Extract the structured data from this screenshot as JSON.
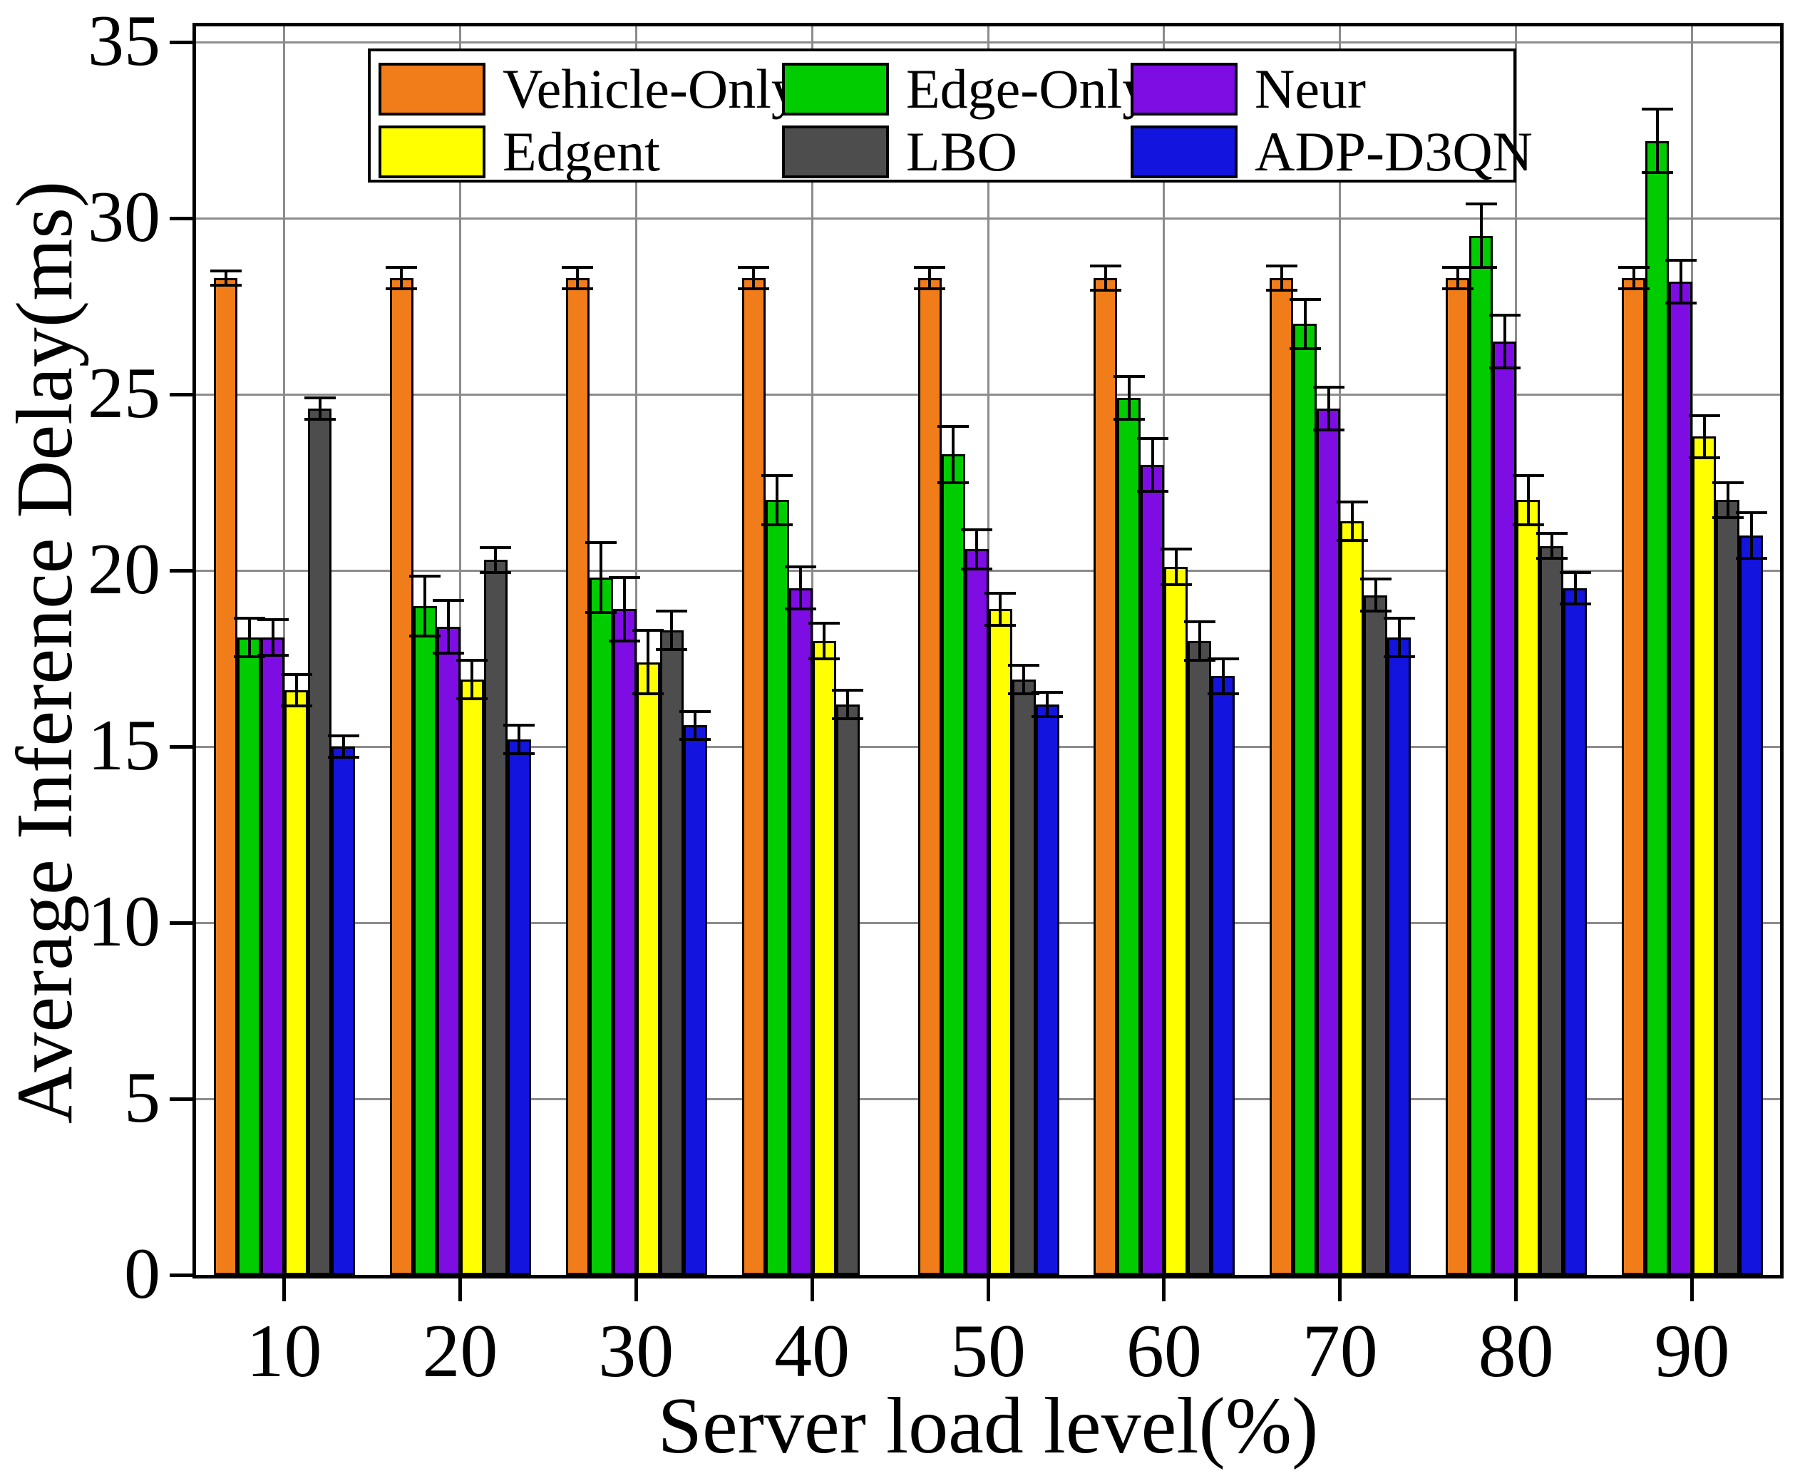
{
  "figure": {
    "background_color": "#ffffff",
    "grid_color": "#8c8c8c",
    "frame_color": "#000000"
  },
  "axes": {
    "y_label": "Average Inference Delay(ms)",
    "x_label": "Server load level(%)",
    "y_ticks": [
      0,
      5,
      10,
      15,
      20,
      25,
      30,
      35
    ],
    "x_tick_labels": [
      "10",
      "20",
      "30",
      "40",
      "50",
      "60",
      "70",
      "80",
      "90"
    ]
  },
  "legend": {
    "rows": 2,
    "columns": 3,
    "order": [
      "Vehicle-Only",
      "Edge-Only",
      "Neur",
      "Edgent",
      "LBO",
      "ADP-D3QN"
    ]
  },
  "chart_data": {
    "type": "bar",
    "title": "",
    "xlabel": "Server load level(%)",
    "ylabel": "Average Inference Delay(ms)",
    "categories": [
      10,
      20,
      30,
      40,
      50,
      60,
      70,
      80,
      90
    ],
    "ylim": [
      0,
      35
    ],
    "grid": true,
    "legend_position": "top-center",
    "error_bars": true,
    "series": [
      {
        "name": "Vehicle-Only",
        "color": "#F07D1A",
        "values": [
          28.3,
          28.3,
          28.3,
          28.3,
          28.3,
          28.3,
          28.3,
          28.3,
          28.3
        ],
        "errors": [
          0.2,
          0.3,
          0.3,
          0.3,
          0.3,
          0.35,
          0.35,
          0.3,
          0.3
        ]
      },
      {
        "name": "Edge-Only",
        "color": "#00CC00",
        "values": [
          18.1,
          19.0,
          19.8,
          22.0,
          23.3,
          24.9,
          27.0,
          29.5,
          32.2
        ],
        "errors": [
          0.55,
          0.85,
          1.0,
          0.7,
          0.8,
          0.6,
          0.7,
          0.9,
          0.9
        ]
      },
      {
        "name": "Neur",
        "color": "#7D0DE2",
        "values": [
          18.1,
          18.4,
          18.9,
          19.5,
          20.6,
          23.0,
          24.6,
          26.5,
          28.2
        ],
        "errors": [
          0.5,
          0.75,
          0.9,
          0.6,
          0.55,
          0.75,
          0.6,
          0.75,
          0.6
        ]
      },
      {
        "name": "Edgent",
        "color": "#FFFF00",
        "values": [
          16.6,
          16.9,
          17.4,
          18.0,
          18.9,
          20.1,
          21.4,
          22.0,
          23.8
        ],
        "errors": [
          0.45,
          0.55,
          0.9,
          0.5,
          0.45,
          0.5,
          0.55,
          0.7,
          0.6
        ]
      },
      {
        "name": "LBO",
        "color": "#4D4D4D",
        "values": [
          24.6,
          20.3,
          18.3,
          16.2,
          16.9,
          18.0,
          19.3,
          20.7,
          22.0
        ],
        "errors": [
          0.3,
          0.35,
          0.55,
          0.4,
          0.4,
          0.55,
          0.45,
          0.35,
          0.5
        ]
      },
      {
        "name": "ADP-D3QN",
        "color": "#1414DF",
        "values": [
          15.0,
          15.2,
          15.6,
          null,
          16.2,
          17.0,
          18.1,
          19.5,
          21.0
        ],
        "errors": [
          0.3,
          0.4,
          0.4,
          null,
          0.35,
          0.5,
          0.55,
          0.45,
          0.65
        ]
      }
    ]
  }
}
